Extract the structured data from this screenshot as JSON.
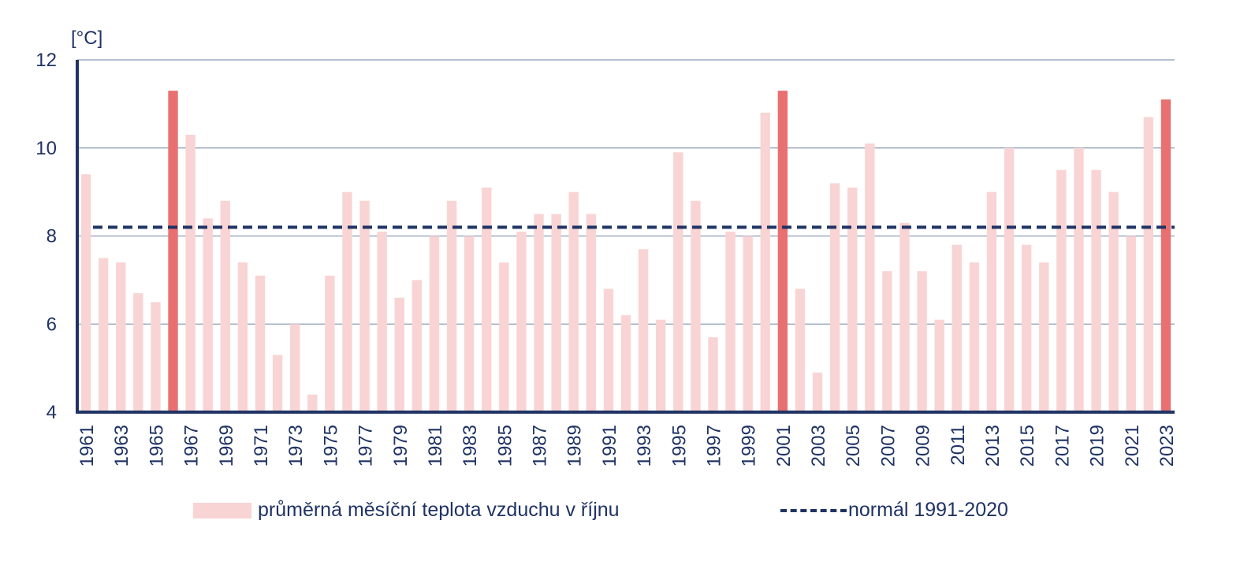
{
  "chart_data": {
    "type": "bar",
    "unit_label": "[°C]",
    "ylim": [
      4,
      12
    ],
    "yticks": [
      4,
      6,
      8,
      10,
      12
    ],
    "grid": true,
    "x": [
      1961,
      1962,
      1963,
      1964,
      1965,
      1966,
      1967,
      1968,
      1969,
      1970,
      1971,
      1972,
      1973,
      1974,
      1975,
      1976,
      1977,
      1978,
      1979,
      1980,
      1981,
      1982,
      1983,
      1984,
      1985,
      1986,
      1987,
      1988,
      1989,
      1990,
      1991,
      1992,
      1993,
      1994,
      1995,
      1996,
      1997,
      1998,
      1999,
      2000,
      2001,
      2002,
      2003,
      2004,
      2005,
      2006,
      2007,
      2008,
      2009,
      2010,
      2011,
      2012,
      2013,
      2014,
      2015,
      2016,
      2017,
      2018,
      2019,
      2020,
      2021,
      2022,
      2023
    ],
    "x_tick_labels": [
      "1961",
      "1963",
      "1965",
      "1967",
      "1969",
      "1971",
      "1973",
      "1975",
      "1977",
      "1979",
      "1981",
      "1983",
      "1985",
      "1987",
      "1989",
      "1991",
      "1993",
      "1995",
      "1997",
      "1999",
      "2001",
      "2003",
      "2005",
      "2007",
      "2009",
      "2011",
      "2013",
      "2015",
      "2017",
      "2019",
      "2021",
      "2023"
    ],
    "series": [
      {
        "name": "průměrná měsíční teplota vzduchu v říjnu",
        "color": "#f9d4d4",
        "highlight_color": "#e97070",
        "highlight_years": [
          1966,
          2001,
          2023
        ],
        "values": [
          9.4,
          7.5,
          7.4,
          6.7,
          6.5,
          11.3,
          10.3,
          8.4,
          8.8,
          7.4,
          7.1,
          5.3,
          6.0,
          4.4,
          7.1,
          9.0,
          8.8,
          8.1,
          6.6,
          7.0,
          8.0,
          8.8,
          8.0,
          9.1,
          7.4,
          8.1,
          8.5,
          8.5,
          9.0,
          8.5,
          6.8,
          6.2,
          7.7,
          6.1,
          9.9,
          8.8,
          5.7,
          8.1,
          8.0,
          10.8,
          11.3,
          6.8,
          4.9,
          9.2,
          9.1,
          10.1,
          7.2,
          8.3,
          7.2,
          6.1,
          7.8,
          7.4,
          9.0,
          10.0,
          7.8,
          7.4,
          9.5,
          10.0,
          9.5,
          9.0,
          8.0,
          10.7,
          11.1
        ]
      }
    ],
    "reference_line": {
      "name": "normál 1991-2020",
      "value": 8.2,
      "color": "#1f3364"
    },
    "axis_color": "#1f3364",
    "grid_color": "#8c9bb8"
  }
}
